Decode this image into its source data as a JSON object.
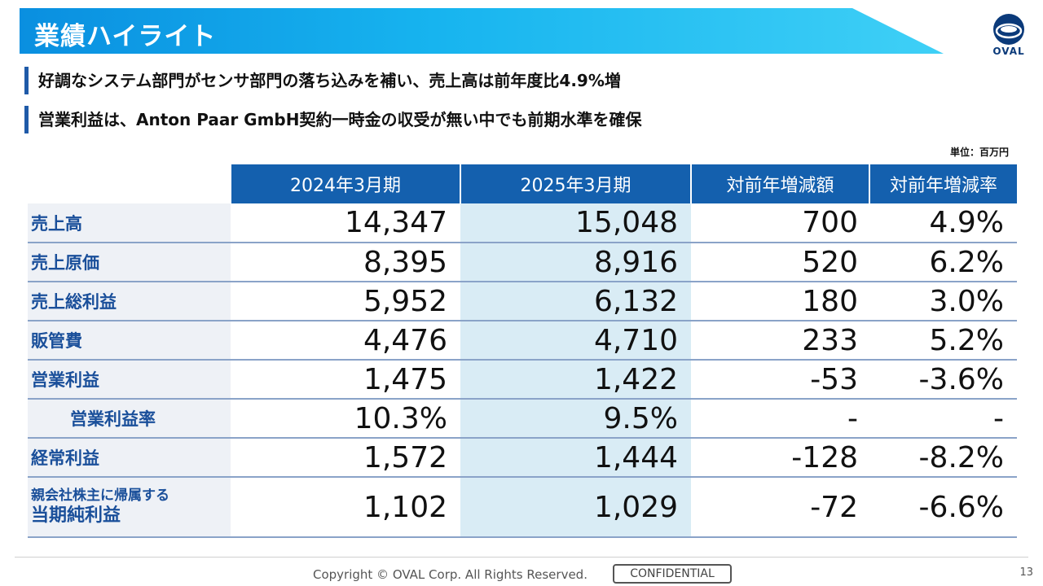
{
  "slide": {
    "title": "業績ハイライト",
    "logo_text": "OVAL",
    "headlines": [
      "好調なシステム部門がセンサ部門の落ち込みを補い、売上高は前年度比4.9%増",
      "営業利益は、Anton Paar GmbH契約一時金の収受が無い中でも前期水準を確保"
    ],
    "unit": "単位：百万円"
  },
  "table": {
    "headers": [
      "2024年3月期",
      "2025年3月期",
      "対前年増減額",
      "対前年増減率"
    ],
    "rows": [
      {
        "label": "売上高",
        "prev": "14,347",
        "curr": "15,048",
        "change": "700",
        "rate": "4.9%"
      },
      {
        "label": "売上原価",
        "prev": "8,395",
        "curr": "8,916",
        "change": "520",
        "rate": "6.2%"
      },
      {
        "label": "売上総利益",
        "prev": "5,952",
        "curr": "6,132",
        "change": "180",
        "rate": "3.0%"
      },
      {
        "label": "販管費",
        "prev": "4,476",
        "curr": "4,710",
        "change": "233",
        "rate": "5.2%"
      },
      {
        "label": "営業利益",
        "prev": "1,475",
        "curr": "1,422",
        "change": "-53",
        "rate": "-3.6%"
      },
      {
        "label": "営業利益率",
        "prev": "10.3%",
        "curr": "9.5%",
        "change": "-",
        "rate": "-"
      },
      {
        "label": "経常利益",
        "prev": "1,572",
        "curr": "1,444",
        "change": "-128",
        "rate": "-8.2%"
      },
      {
        "label_small": "親会社株主に帰属する",
        "label_big": "当期純利益",
        "prev": "1,102",
        "curr": "1,029",
        "change": "-72",
        "rate": "-6.6%"
      }
    ]
  },
  "footer": {
    "copyright": "Copyright © OVAL Corp. All Rights Reserved.",
    "confidential": "CONFIDENTIAL",
    "page": "13"
  }
}
